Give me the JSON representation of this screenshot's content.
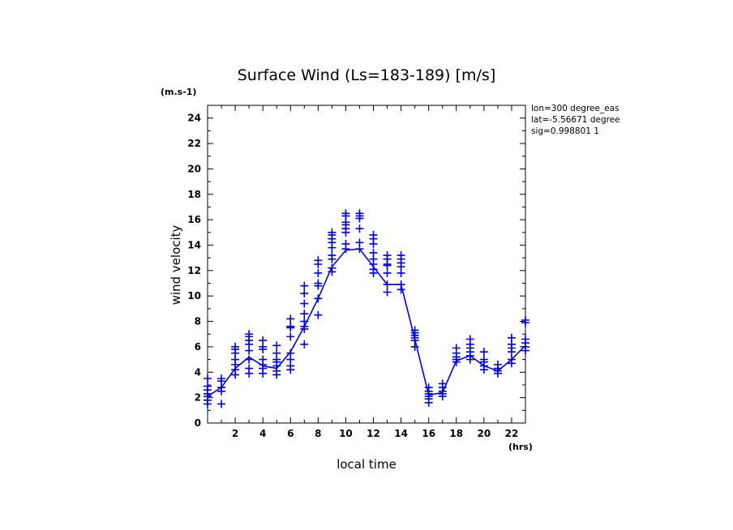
{
  "chart_data": {
    "type": "line",
    "title": "Surface Wind  (Ls=183-189) [m/s]",
    "y_unit_label": "(m.s-1)",
    "x_unit_label": "(hrs)",
    "xlabel": "local time",
    "ylabel": "wind velocity",
    "info_lines": [
      "lon=300 degree_eas",
      "lat=-5.56671 degree",
      "sig=0.998801 1"
    ],
    "xlim": [
      0,
      23
    ],
    "ylim": [
      0,
      25
    ],
    "x_ticks": [
      2,
      4,
      6,
      8,
      10,
      12,
      14,
      16,
      18,
      20,
      22
    ],
    "y_ticks": [
      0,
      2,
      4,
      6,
      8,
      10,
      12,
      14,
      16,
      18,
      20,
      22,
      24
    ],
    "grid": false,
    "color": "#0000e0",
    "series": [
      {
        "kind": "mean-line",
        "x": [
          0,
          1,
          2,
          3,
          4,
          5,
          6,
          7,
          8,
          9,
          10,
          11,
          12,
          13,
          14,
          15,
          16,
          17,
          18,
          19,
          20,
          21,
          22,
          23
        ],
        "y": [
          2.1,
          2.8,
          4.3,
          5.2,
          4.5,
          4.3,
          5.6,
          7.6,
          9.8,
          12.3,
          13.6,
          13.7,
          12.3,
          10.9,
          10.9,
          6.6,
          2.2,
          2.4,
          4.9,
          5.3,
          4.5,
          4.1,
          5.0,
          6.1
        ]
      },
      {
        "kind": "individual-markers",
        "marker": "+",
        "points": {
          "0": [
            1.5,
            1.8,
            2.1,
            2.3,
            2.6,
            2.9,
            3.5
          ],
          "1": [
            1.5,
            2.5,
            2.8,
            3.3,
            3.5
          ],
          "2": [
            3.8,
            4.2,
            4.6,
            5.0,
            5.5,
            5.8,
            6.0
          ],
          "3": [
            3.9,
            4.3,
            5.0,
            5.7,
            6.2,
            6.5,
            6.8,
            7.0
          ],
          "4": [
            3.9,
            4.3,
            4.6,
            5.0,
            5.8,
            6.0,
            6.5
          ],
          "5": [
            3.8,
            4.1,
            4.5,
            4.8,
            5.0,
            5.5,
            6.1
          ],
          "6": [
            4.2,
            4.5,
            5.0,
            5.5,
            6.8,
            7.5,
            7.6,
            8.2
          ],
          "7": [
            6.2,
            7.4,
            7.6,
            8.0,
            8.6,
            9.4,
            10.2,
            10.8
          ],
          "8": [
            8.5,
            9.8,
            10.8,
            11.0,
            11.8,
            12.5,
            12.8
          ],
          "9": [
            11.9,
            12.2,
            12.9,
            13.2,
            13.8,
            14.2,
            14.5,
            14.8,
            15.0
          ],
          "10": [
            13.7,
            14.1,
            15.0,
            15.3,
            15.6,
            15.8,
            16.3,
            16.5
          ],
          "11": [
            13.7,
            14.2,
            15.3,
            16.1,
            16.3,
            16.5
          ],
          "12": [
            11.8,
            12.1,
            12.5,
            12.9,
            13.4,
            14.1,
            14.5,
            14.8
          ],
          "13": [
            10.3,
            10.9,
            11.8,
            12.4,
            12.5,
            12.9,
            13.2
          ],
          "14": [
            10.5,
            10.9,
            11.8,
            12.3,
            12.6,
            12.9,
            13.2
          ],
          "15": [
            6.0,
            6.5,
            6.7,
            6.9,
            7.1,
            7.3
          ],
          "16": [
            1.6,
            1.9,
            2.1,
            2.3,
            2.5,
            2.8
          ],
          "17": [
            2.1,
            2.3,
            2.5,
            2.8,
            3.1
          ],
          "18": [
            4.8,
            5.0,
            5.2,
            5.5,
            5.9
          ],
          "19": [
            5.0,
            5.3,
            5.6,
            5.9,
            6.2,
            6.6
          ],
          "20": [
            4.2,
            4.5,
            4.8,
            5.0,
            5.6
          ],
          "21": [
            3.9,
            4.1,
            4.3,
            4.6
          ],
          "22": [
            4.7,
            5.0,
            5.6,
            5.9,
            6.2,
            6.7
          ],
          "23": [
            5.7,
            6.0,
            6.3,
            6.6,
            7.9,
            8.1
          ]
        }
      }
    ]
  }
}
